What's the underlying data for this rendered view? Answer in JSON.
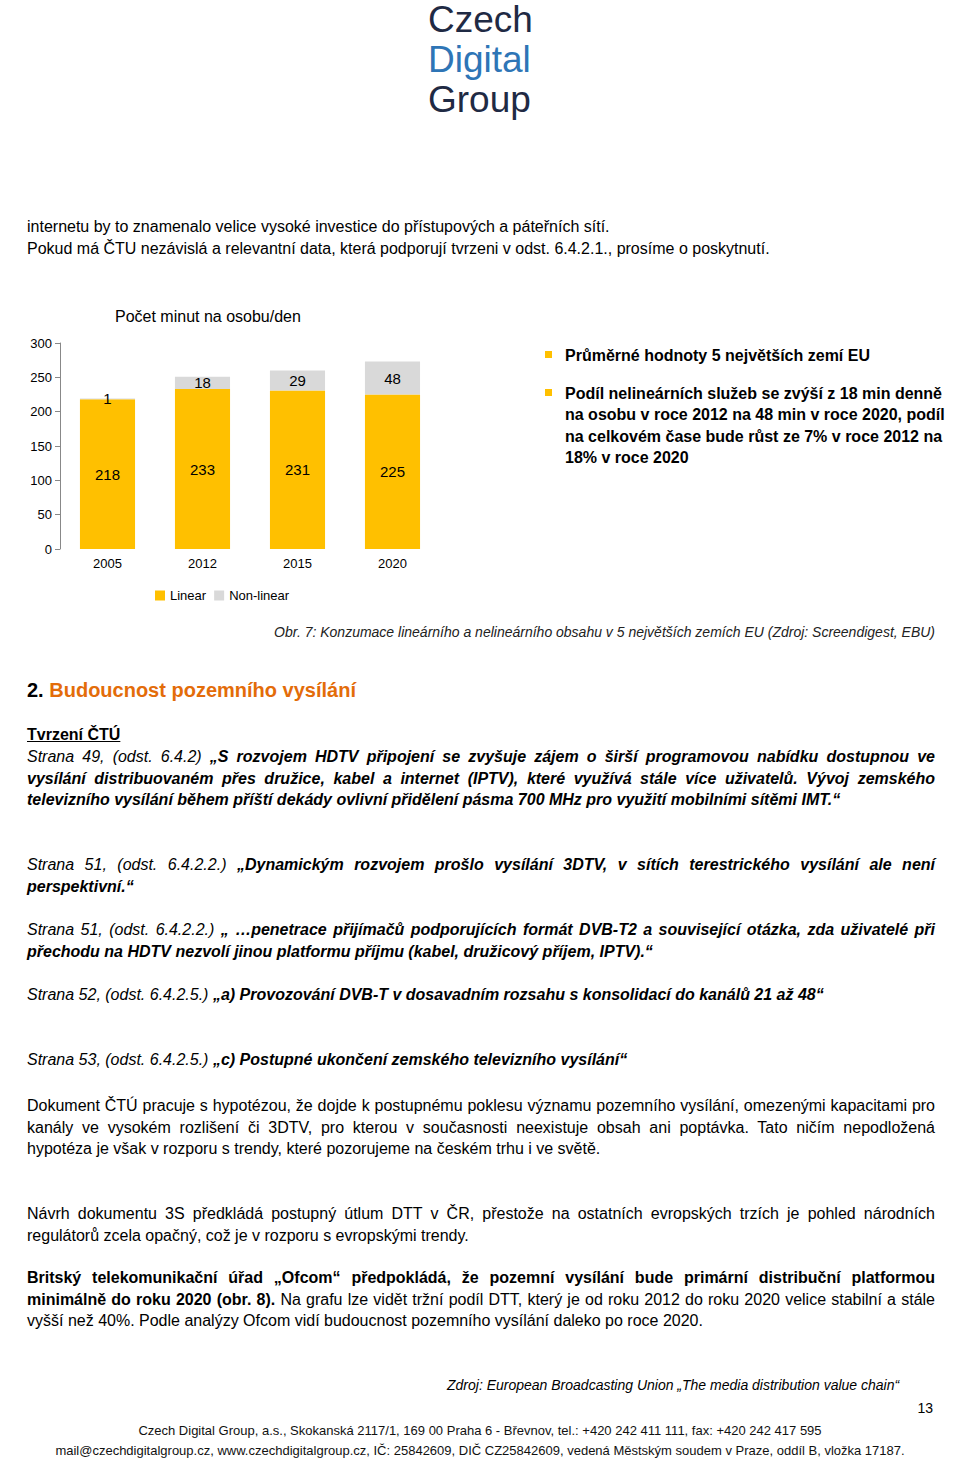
{
  "header_logo": [
    "Czech",
    "Digital",
    "Group"
  ],
  "intro": [
    "internetu by to znamenalo velice vysoké investice do přístupových a páteřních sítí.",
    "Pokud má ČTU nezávislá a relevantní data, která podporují tvrzeni v odst. 6.4.2.1., prosíme o poskytnutí."
  ],
  "chart_data": {
    "type": "bar",
    "title": "Počet minut na osobu/den",
    "categories": [
      "2005",
      "2012",
      "2015",
      "2020"
    ],
    "series": [
      {
        "name": "Linear",
        "color": "#FFC000",
        "values": [
          218,
          233,
          231,
          225
        ]
      },
      {
        "name": "Non-linear",
        "color": "#D9D9D9",
        "values": [
          1,
          18,
          29,
          48
        ]
      }
    ],
    "ylim": [
      0,
      300
    ],
    "yticks": [
      0,
      50,
      100,
      150,
      200,
      250,
      300
    ],
    "stacked": true,
    "data_labels": true,
    "legend": "bottom",
    "grid": false
  },
  "chart_notes": [
    "Průměrné hodnoty 5 největších zemí EU",
    "Podíl nelineárních služeb se zvýší z 18 min denně na osobu v roce 2012 na 48 min v roce 2020, podíl na celkovém čase bude růst ze 7% v roce 2012 na 18% v roce 2020"
  ],
  "caption": "Obr. 7: Konzumace lineárního a nelineárního obsahu v 5 největších zemích EU (Zdroj: Screendigest, EBU)",
  "section": {
    "number": "2.",
    "title": "Budoucnost pozemního vysílání"
  },
  "claims_heading": "Tvrzení ČTÚ",
  "quotes": [
    [
      {
        "text": "Strana 49, (odst. 6.4.2) ",
        "format": "italic"
      },
      {
        "text": "„S rozvojem HDTV připojení se zvyšuje zájem o širší programovou nabídku dostupnou ve vysílání distribuovaném přes družice, kabel a internet (IPTV), které využívá stále více uživatelů. Vývoj zemského televizního vysílání během příští dekády ovlivní přidělení pásma 700 MHz pro využití mobilními sítěmi IMT.“",
        "format": "bold-italic"
      }
    ],
    [
      {
        "text": "Strana 51, (odst. 6.4.2.2.) ",
        "format": "italic"
      },
      {
        "text": "„Dynamickým rozvojem prošlo vysílání 3DTV, v sítích terestrického vysílání ale není perspektivní.“",
        "format": "bold-italic"
      }
    ],
    [
      {
        "text": "Strana 51, (odst. 6.4.2.2.) ",
        "format": "italic"
      },
      {
        "text": "„ …penetrace přijímačů podporujících formát DVB-T2 a související otázka, zda uživatelé při přechodu na HDTV nezvolí jinou platformu příjmu (kabel, družicový příjem, IPTV).“",
        "format": "bold-italic"
      }
    ],
    [
      {
        "text": "Strana 52, (odst. 6.4.2.5.) ",
        "format": "italic"
      },
      {
        "text": "„a) Provozování DVB-T v dosavadním rozsahu s konsolidací do kanálů 21 až 48“",
        "format": "bold-italic"
      }
    ],
    [
      {
        "text": "Strana 53, (odst. 6.4.2.5.) ",
        "format": "italic"
      },
      {
        "text": "„c) Postupné ukončení zemského televizního vysílání“",
        "format": "bold-italic"
      }
    ]
  ],
  "paragraphs": [
    [
      {
        "text": "Dokument ČTÚ pracuje s hypotézou, že dojde k postupnému poklesu významu pozemního vysílání, omezenými kapacitami pro kanály ve vysokém rozlišení či 3DTV, pro kterou v současnosti neexistuje obsah ani poptávka. Tato ničím nepodložená hypotéza je však v rozporu s trendy, které pozorujeme na českém trhu i ve světě.",
        "format": "normal"
      }
    ],
    [
      {
        "text": "Návrh dokumentu 3S předkládá postupný útlum DTT v ČR, přestože na ostatních evropských trzích je pohled národních regulátorů zcela opačný, což je v rozporu s evropskými trendy.",
        "format": "normal"
      }
    ],
    [
      {
        "text": "Britský telekomunikační úřad „Ofcom“ předpokládá, že pozemní vysílání bude primární distribuční platformou minimálně do roku 2020 (obr. 8).",
        "format": "bold"
      },
      {
        "text": " Na grafu lze vidět tržní podíl DTT, který je od roku 2012 do roku 2020 velice stabilní a stále vyšší než 40%. Podle analýzy Ofcom vidí budoucnost pozemního vysílání daleko po roce 2020.",
        "format": "normal"
      }
    ]
  ],
  "source": "Zdroj: European Broadcasting Union „The media distribution value chain“",
  "page_number": "13",
  "footer": [
    "Czech Digital Group, a.s., Skokanská 2117/1, 169 00 Praha 6 - Břevnov, tel.: +420 242 411 111, fax: +420 242 417 595",
    "mail@czechdigitalgroup.cz, www.czechdigitalgroup.cz, IČ: 25842609, DIČ CZ25842609, vedená Městským soudem v Praze, oddíl B, vložka 17187."
  ]
}
